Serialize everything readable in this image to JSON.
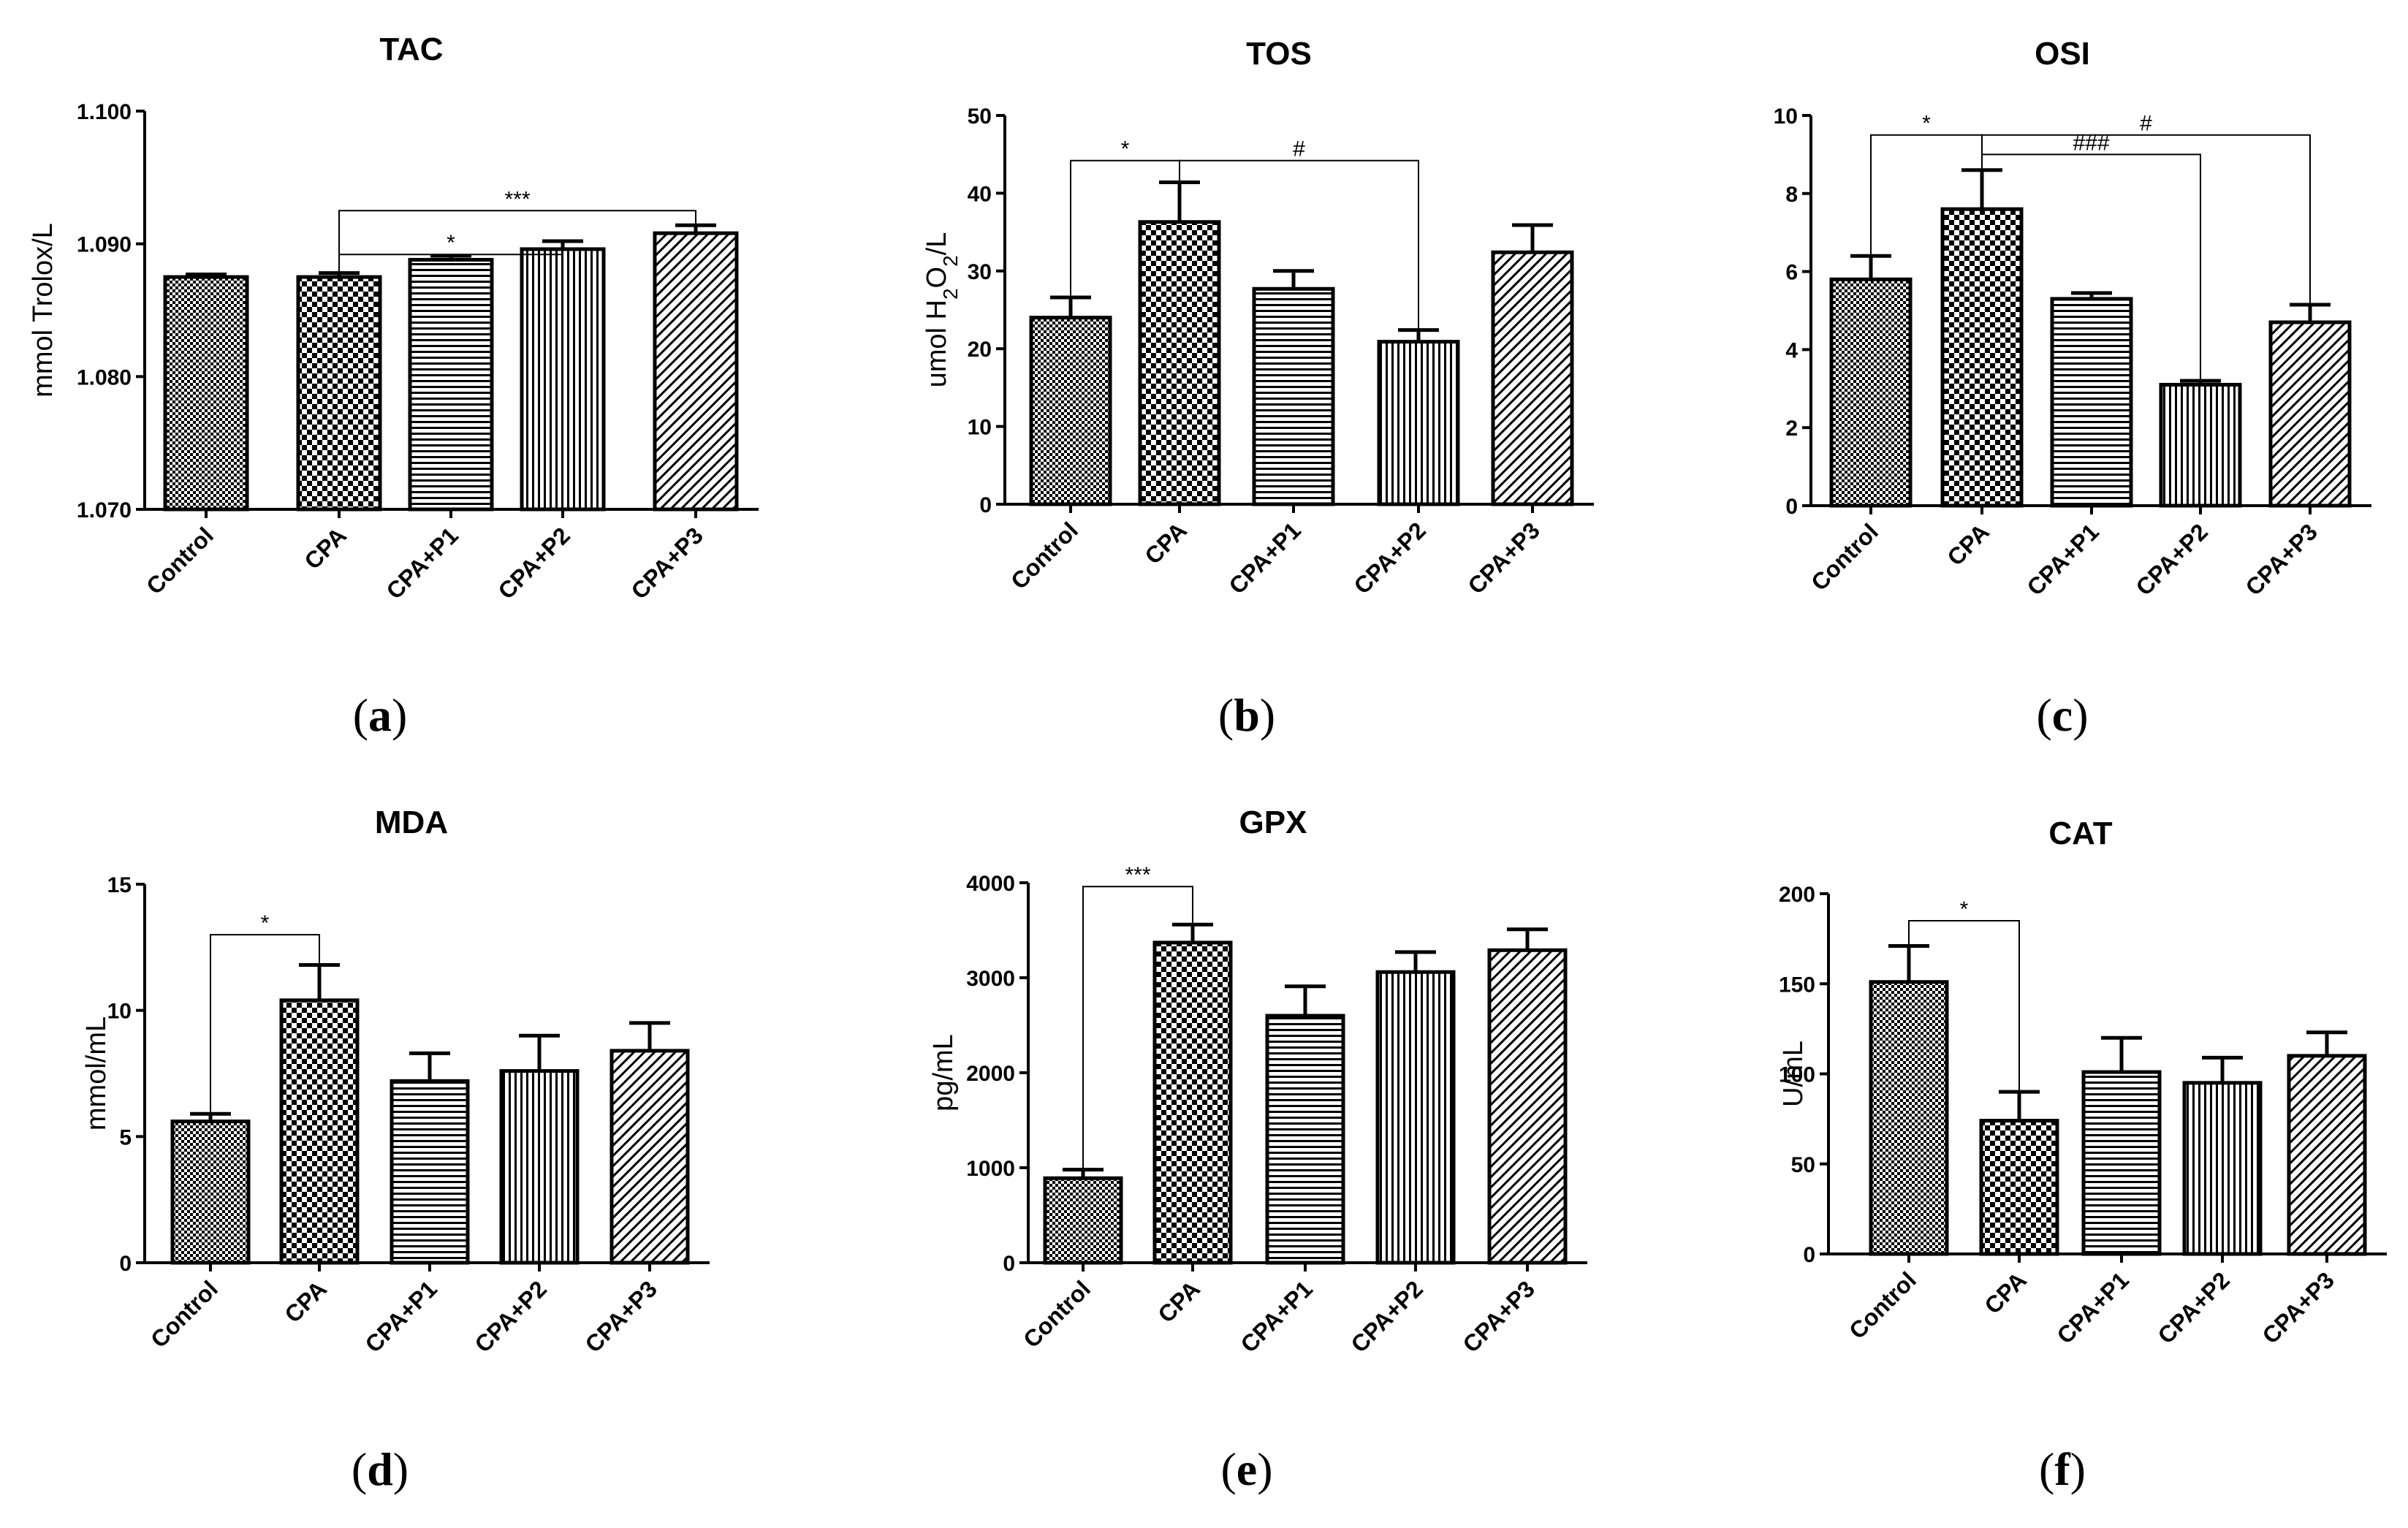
{
  "figure_labels": [
    "a",
    "b",
    "c",
    "d",
    "e",
    "f"
  ],
  "chart_data": [
    {
      "type": "bar",
      "panel": "a",
      "title": "TAC",
      "ylabel": "mmol Trolox/L",
      "categories": [
        "Control",
        "CPA",
        "CPA+P1",
        "CPA+P2",
        "CPA+P3"
      ],
      "values": [
        1.0875,
        1.0875,
        1.0888,
        1.0896,
        1.0908
      ],
      "errors": [
        0.0002,
        0.0003,
        0.0003,
        0.0006,
        0.0006
      ],
      "patterns": [
        "checker-fine",
        "checker",
        "hlines",
        "vlines",
        "diag"
      ],
      "ylim": [
        1.07,
        1.1
      ],
      "yticks": [
        "1.070",
        "1.080",
        "1.090",
        "1.100"
      ],
      "ytick_values": [
        1.07,
        1.08,
        1.09,
        1.1
      ],
      "significance": [
        {
          "from": 1,
          "to": 3,
          "label": "*",
          "y": 1.0892
        },
        {
          "from": 1,
          "to": 4,
          "label": "***",
          "y": 1.0925
        }
      ]
    },
    {
      "type": "bar",
      "panel": "b",
      "title": "TOS",
      "ylabel": "umol H2O2/L",
      "ylabel_parts": [
        "umol H",
        "2",
        "O",
        "2",
        "/L"
      ],
      "categories": [
        "Control",
        "CPA",
        "CPA+P1",
        "CPA+P2",
        "CPA+P3"
      ],
      "values": [
        24,
        36.3,
        27.7,
        20.9,
        32.4
      ],
      "errors": [
        2.6,
        5.1,
        2.3,
        1.5,
        3.5
      ],
      "patterns": [
        "checker-fine",
        "checker",
        "hlines",
        "vlines",
        "diag"
      ],
      "ylim": [
        0,
        50
      ],
      "yticks": [
        "0",
        "10",
        "20",
        "30",
        "40",
        "50"
      ],
      "ytick_values": [
        0,
        10,
        20,
        30,
        40,
        50
      ],
      "significance": [
        {
          "from": 0,
          "to": 1,
          "label": "*",
          "y": 44.2
        },
        {
          "from": 1,
          "to": 3,
          "label": "#",
          "y": 44.2
        }
      ]
    },
    {
      "type": "bar",
      "panel": "c",
      "title": "OSI",
      "categories": [
        "Control",
        "CPA",
        "CPA+P1",
        "CPA+P2",
        "CPA+P3"
      ],
      "values": [
        5.8,
        7.6,
        5.3,
        3.1,
        4.7
      ],
      "errors": [
        0.6,
        1.0,
        0.15,
        0.1,
        0.45
      ],
      "patterns": [
        "checker-fine",
        "checker",
        "hlines",
        "vlines",
        "diag"
      ],
      "ylim": [
        0,
        10
      ],
      "yticks": [
        "0",
        "2",
        "4",
        "6",
        "8",
        "10"
      ],
      "ytick_values": [
        0,
        2,
        4,
        6,
        8,
        10
      ],
      "significance": [
        {
          "from": 0,
          "to": 1,
          "label": "*",
          "y": 9.5
        },
        {
          "from": 1,
          "to": 3,
          "label": "###",
          "y": 9.0
        },
        {
          "from": 1,
          "to": 4,
          "label": "#",
          "y": 9.5
        }
      ]
    },
    {
      "type": "bar",
      "panel": "d",
      "title": "MDA",
      "ylabel": "mmol/mL",
      "categories": [
        "Control",
        "CPA",
        "CPA+P1",
        "CPA+P2",
        "CPA+P3"
      ],
      "values": [
        5.6,
        10.4,
        7.2,
        7.6,
        8.4
      ],
      "errors": [
        0.3,
        1.4,
        1.1,
        1.4,
        1.1
      ],
      "patterns": [
        "checker-fine",
        "checker",
        "hlines",
        "vlines",
        "diag"
      ],
      "ylim": [
        0,
        15
      ],
      "yticks": [
        "0",
        "5",
        "10",
        "15"
      ],
      "ytick_values": [
        0,
        5,
        10,
        15
      ],
      "significance": [
        {
          "from": 0,
          "to": 1,
          "label": "*",
          "y": 13.0
        }
      ]
    },
    {
      "type": "bar",
      "panel": "e",
      "title": "GPX",
      "ylabel": "pg/mL",
      "categories": [
        "Control",
        "CPA",
        "CPA+P1",
        "CPA+P2",
        "CPA+P3"
      ],
      "values": [
        890,
        3370,
        2600,
        3060,
        3290
      ],
      "errors": [
        90,
        190,
        310,
        210,
        220
      ],
      "patterns": [
        "checker-fine",
        "checker",
        "hlines",
        "vlines",
        "diag"
      ],
      "ylim": [
        0,
        4000
      ],
      "yticks": [
        "0",
        "1000",
        "2000",
        "3000",
        "4000"
      ],
      "ytick_values": [
        0,
        1000,
        2000,
        3000,
        4000
      ],
      "significance": [
        {
          "from": 0,
          "to": 1,
          "label": "***",
          "y": 3960
        }
      ]
    },
    {
      "type": "bar",
      "panel": "f",
      "title": "CAT",
      "ylabel": "U/mL",
      "categories": [
        "Control",
        "CPA",
        "CPA+P1",
        "CPA+P2",
        "CPA+P3"
      ],
      "values": [
        151,
        74,
        101,
        95,
        110
      ],
      "errors": [
        20,
        16,
        19,
        14,
        13
      ],
      "patterns": [
        "checker-fine",
        "checker",
        "hlines",
        "vlines",
        "diag"
      ],
      "ylim": [
        0,
        200
      ],
      "yticks": [
        "0",
        "50",
        "100",
        "150",
        "200"
      ],
      "ytick_values": [
        0,
        50,
        100,
        150,
        200
      ],
      "significance": [
        {
          "from": 0,
          "to": 1,
          "label": "*",
          "y": 185
        }
      ]
    }
  ]
}
